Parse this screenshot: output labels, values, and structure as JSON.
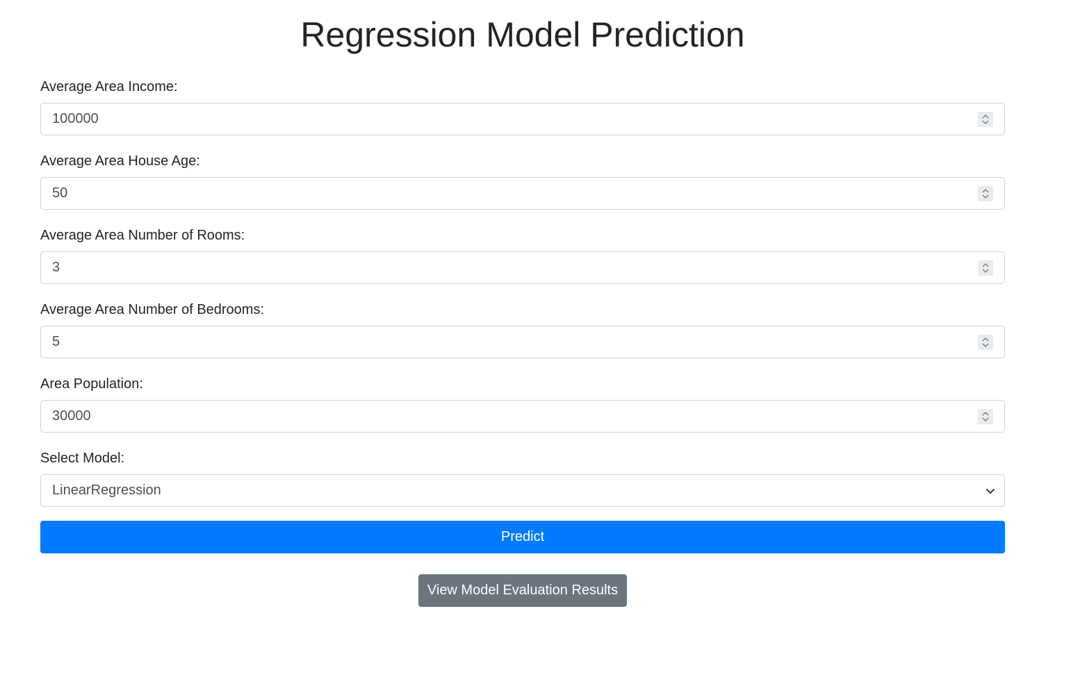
{
  "page": {
    "title": "Regression Model Prediction"
  },
  "form": {
    "fields": [
      {
        "label": "Average Area Income:",
        "value": "100000"
      },
      {
        "label": "Average Area House Age:",
        "value": "50"
      },
      {
        "label": "Average Area Number of Rooms:",
        "value": "3"
      },
      {
        "label": "Average Area Number of Bedrooms:",
        "value": "5"
      },
      {
        "label": "Area Population:",
        "value": "30000"
      }
    ],
    "model_select": {
      "label": "Select Model:",
      "selected": "LinearRegression"
    },
    "predict_label": "Predict"
  },
  "evaluation": {
    "button_label": "View Model Evaluation Results"
  },
  "colors": {
    "primary": "#007bff",
    "secondary": "#6c757d",
    "border": "#ced4da",
    "text": "#212529"
  }
}
